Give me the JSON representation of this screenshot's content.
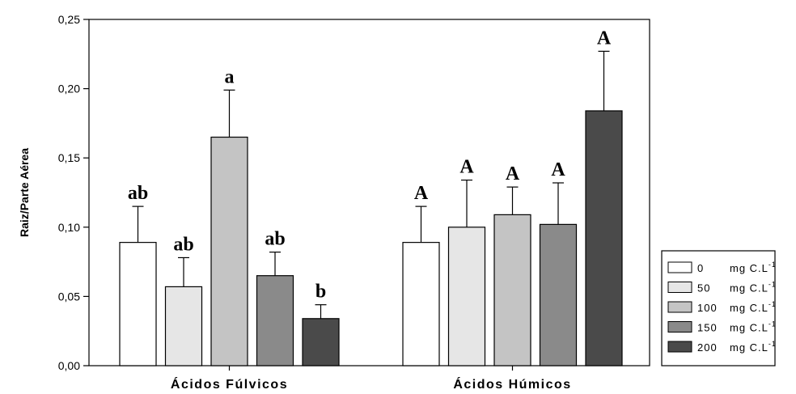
{
  "chart_data": {
    "type": "bar",
    "ylabel": "Raiz/Parte Aérea",
    "xlabel": "",
    "ylim": [
      0,
      0.25
    ],
    "yticks": [
      "0,00",
      "0,05",
      "0,10",
      "0,15",
      "0,20",
      "0,25"
    ],
    "categories": [
      "Ácidos Fúlvicos",
      "Ácidos Húmicos"
    ],
    "series": [
      {
        "name": "0",
        "unit": "mg C.L",
        "sup": "-1",
        "color": "#ffffff",
        "values": [
          0.089,
          0.089
        ],
        "errors": [
          0.026,
          0.026
        ],
        "letters": [
          "ab",
          "A"
        ]
      },
      {
        "name": "50",
        "unit": "mg C.L",
        "sup": "-1",
        "color": "#e6e6e6",
        "values": [
          0.057,
          0.1
        ],
        "errors": [
          0.021,
          0.034
        ],
        "letters": [
          "ab",
          "A"
        ]
      },
      {
        "name": "100",
        "unit": "mg C.L",
        "sup": "-1",
        "color": "#c4c4c4",
        "values": [
          0.165,
          0.109
        ],
        "errors": [
          0.034,
          0.02
        ],
        "letters": [
          "a",
          "A"
        ]
      },
      {
        "name": "150",
        "unit": "mg C.L",
        "sup": "-1",
        "color": "#8a8a8a",
        "values": [
          0.065,
          0.102
        ],
        "errors": [
          0.017,
          0.03
        ],
        "letters": [
          "ab",
          "A"
        ]
      },
      {
        "name": "200",
        "unit": "mg C.L",
        "sup": "-1",
        "color": "#4a4a4a",
        "values": [
          0.034,
          0.184
        ],
        "errors": [
          0.01,
          0.043
        ],
        "letters": [
          "b",
          "A"
        ]
      }
    ],
    "legend_position": "bottom-right",
    "grid": false
  }
}
